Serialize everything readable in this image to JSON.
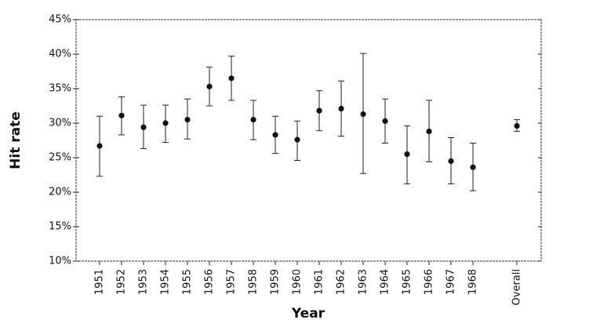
{
  "chart_data": {
    "type": "errorbar",
    "x_label": "Year",
    "y_label": "Hit rate",
    "categories": [
      "1951",
      "1952",
      "1953",
      "1954",
      "1955",
      "1956",
      "1957",
      "1958",
      "1959",
      "1960",
      "1961",
      "1962",
      "1963",
      "1964",
      "1965",
      "1966",
      "1967",
      "1968",
      null,
      "Overall"
    ],
    "values": [
      26.7,
      31.1,
      29.4,
      30.0,
      30.5,
      35.3,
      36.5,
      30.5,
      28.3,
      27.6,
      31.8,
      32.1,
      31.3,
      30.3,
      25.5,
      28.8,
      24.5,
      23.6,
      null,
      29.6
    ],
    "lower": [
      22.3,
      28.3,
      26.3,
      27.2,
      27.7,
      32.5,
      33.3,
      27.6,
      25.6,
      24.6,
      28.9,
      28.1,
      22.7,
      27.1,
      21.2,
      24.4,
      21.2,
      20.2,
      null,
      28.8
    ],
    "upper": [
      31.0,
      33.8,
      32.6,
      32.6,
      33.5,
      38.1,
      39.7,
      33.3,
      31.0,
      30.3,
      34.7,
      36.1,
      40.1,
      33.5,
      29.6,
      33.3,
      27.9,
      27.1,
      null,
      30.5
    ],
    "color": "#111111",
    "ylim": [
      10,
      45
    ],
    "yticks": [
      {
        "value": 10,
        "label": "10%"
      },
      {
        "value": 15,
        "label": "15%"
      },
      {
        "value": 20,
        "label": "20%"
      },
      {
        "value": 25,
        "label": "25%"
      },
      {
        "value": 30,
        "label": "30%"
      },
      {
        "value": 35,
        "label": "35%"
      },
      {
        "value": 40,
        "label": "40%"
      },
      {
        "value": 45,
        "label": "45%"
      }
    ],
    "grid": false
  }
}
